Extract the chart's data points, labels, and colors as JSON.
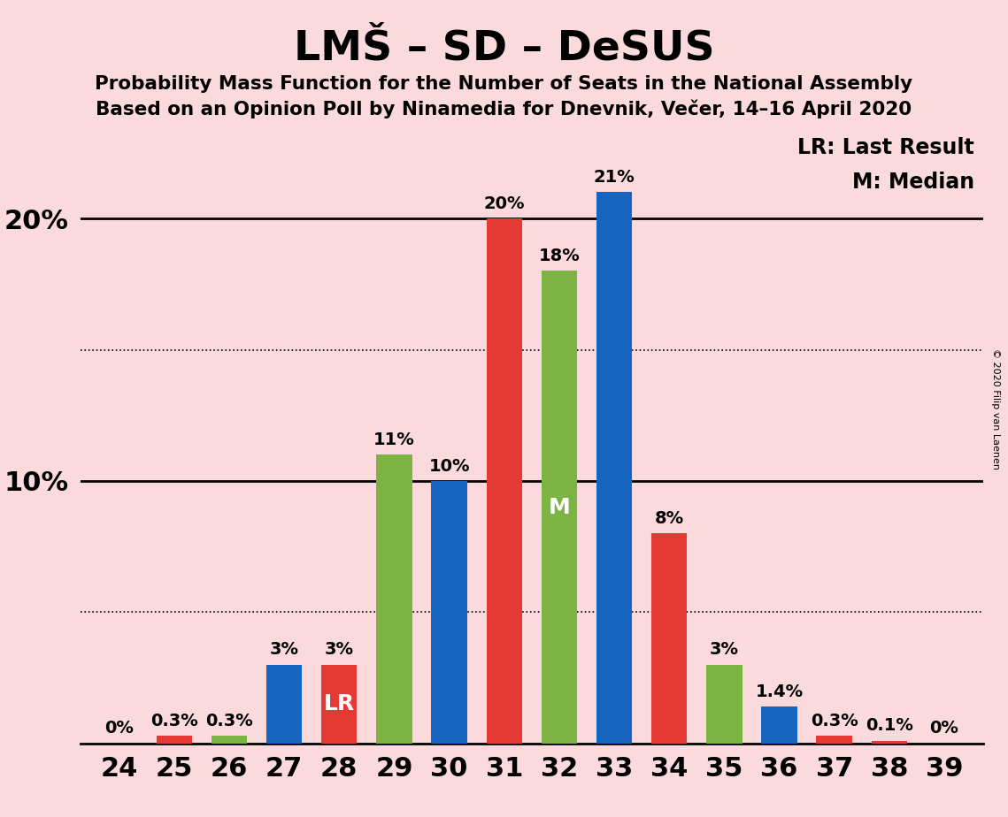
{
  "title": "LMŠ – SD – DeSUS",
  "subtitle1": "Probability Mass Function for the Number of Seats in the National Assembly",
  "subtitle2": "Based on an Opinion Poll by Ninamedia for Dnevnik, Večer, 14–16 April 2020",
  "copyright": "© 2020 Filip van Laenen",
  "seats": [
    24,
    25,
    26,
    27,
    28,
    29,
    30,
    31,
    32,
    33,
    34,
    35,
    36,
    37,
    38,
    39
  ],
  "bar_values": [
    0,
    0.3,
    0.3,
    3.0,
    3.0,
    11.0,
    10.0,
    20.0,
    18.0,
    21.0,
    8.0,
    3.0,
    1.4,
    0.3,
    0.1,
    0
  ],
  "bar_colors": [
    "#1565C0",
    "#E53935",
    "#7CB342",
    "#1565C0",
    "#E53935",
    "#7CB342",
    "#1565C0",
    "#E53935",
    "#7CB342",
    "#1565C0",
    "#E53935",
    "#7CB342",
    "#1565C0",
    "#E53935",
    "#E53935",
    "#E53935"
  ],
  "bar_labels": [
    "0%",
    "0.3%",
    "0.3%",
    "3%",
    "3%",
    "11%",
    "10%",
    "20%",
    "18%",
    "21%",
    "8%",
    "3%",
    "1.4%",
    "0.3%",
    "0.1%",
    "0%"
  ],
  "show_label": [
    true,
    true,
    true,
    true,
    true,
    true,
    true,
    true,
    true,
    true,
    true,
    true,
    true,
    true,
    true,
    true
  ],
  "lms_color": "#1565C0",
  "sd_color": "#E53935",
  "desus_color": "#7CB342",
  "background_color": "#FADADD",
  "lr_seat_idx": 4,
  "median_seat_idx": 8,
  "ylim": [
    0,
    23.5
  ],
  "solid_lines": [
    10,
    20
  ],
  "dotted_lines": [
    5,
    15
  ],
  "legend_text1": "LR: Last Result",
  "legend_text2": "M: Median",
  "zero_label_seats": [
    0,
    15
  ],
  "bar_width": 0.65
}
